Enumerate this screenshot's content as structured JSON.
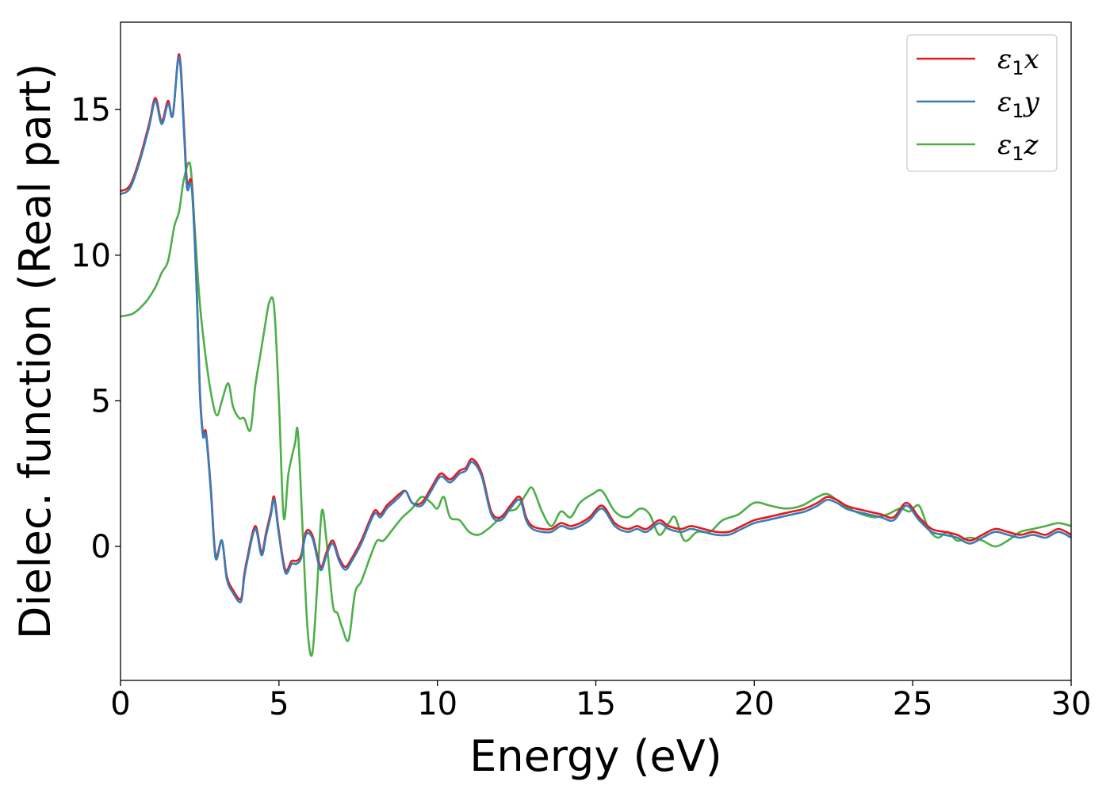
{
  "chart_data": {
    "type": "line",
    "title": "",
    "xlabel": "Energy (eV)",
    "ylabel": "Dielec. function (Real part)",
    "xlim": [
      0,
      30
    ],
    "ylim": [
      -4.6,
      18.0
    ],
    "xticks": [
      0,
      5,
      10,
      15,
      20,
      25,
      30
    ],
    "yticks": [
      0,
      5,
      10,
      15
    ],
    "grid": false,
    "legend": "top-right",
    "series": [
      {
        "name": "ε1x",
        "label_main": "ε",
        "label_sub": "1",
        "label_tail": "x",
        "color": "#e41a1c",
        "x": [
          0,
          0.3,
          0.6,
          0.9,
          1.1,
          1.3,
          1.5,
          1.65,
          1.85,
          2.0,
          2.1,
          2.25,
          2.4,
          2.5,
          2.6,
          2.7,
          2.85,
          3.0,
          3.2,
          3.35,
          3.55,
          3.8,
          3.9,
          4.0,
          4.25,
          4.45,
          4.6,
          4.75,
          4.85,
          5.0,
          5.2,
          5.4,
          5.55,
          5.7,
          5.85,
          6.05,
          6.25,
          6.35,
          6.5,
          6.7,
          6.9,
          7.1,
          7.3,
          7.6,
          8.0,
          8.2,
          8.4,
          8.6,
          8.8,
          9.0,
          9.2,
          9.5,
          9.8,
          10.1,
          10.4,
          10.7,
          10.9,
          11.1,
          11.4,
          11.7,
          12.0,
          12.3,
          12.6,
          12.8,
          13.0,
          13.3,
          13.6,
          13.9,
          14.2,
          14.5,
          14.8,
          15.2,
          15.6,
          16.0,
          16.3,
          16.6,
          17.0,
          17.3,
          17.7,
          18.0,
          18.4,
          18.8,
          19.2,
          19.6,
          20.0,
          20.4,
          20.8,
          21.2,
          21.6,
          22.0,
          22.3,
          22.6,
          22.9,
          23.2,
          23.6,
          24.0,
          24.4,
          24.8,
          25.2,
          25.6,
          26.0,
          26.4,
          26.8,
          27.2,
          27.6,
          28.0,
          28.4,
          28.8,
          29.2,
          29.6,
          30.0
        ],
        "values": [
          12.2,
          12.4,
          13.3,
          14.5,
          15.4,
          14.6,
          15.3,
          14.8,
          16.9,
          14.5,
          12.5,
          12.4,
          9.0,
          5.5,
          3.9,
          3.9,
          2.0,
          -0.3,
          0.2,
          -1.0,
          -1.5,
          -1.8,
          -1.0,
          -0.4,
          0.7,
          -0.2,
          0.5,
          1.2,
          1.7,
          0.5,
          -0.8,
          -0.5,
          -0.5,
          -0.3,
          0.5,
          0.4,
          -0.5,
          -0.7,
          -0.2,
          0.2,
          -0.4,
          -0.7,
          -0.4,
          0.2,
          1.2,
          1.1,
          1.4,
          1.6,
          1.8,
          1.9,
          1.5,
          1.5,
          2.0,
          2.5,
          2.3,
          2.6,
          2.7,
          3.0,
          2.5,
          1.2,
          1.0,
          1.4,
          1.7,
          1.0,
          0.7,
          0.6,
          0.6,
          0.8,
          0.7,
          0.8,
          1.0,
          1.4,
          0.8,
          0.6,
          0.7,
          0.6,
          0.9,
          0.7,
          0.6,
          0.7,
          0.6,
          0.5,
          0.5,
          0.7,
          0.9,
          1.0,
          1.1,
          1.2,
          1.3,
          1.5,
          1.7,
          1.6,
          1.4,
          1.3,
          1.2,
          1.1,
          1.0,
          1.5,
          1.0,
          0.6,
          0.5,
          0.4,
          0.2,
          0.4,
          0.6,
          0.5,
          0.4,
          0.5,
          0.4,
          0.6,
          0.4
        ]
      },
      {
        "name": "ε1y",
        "label_main": "ε",
        "label_sub": "1",
        "label_tail": "y",
        "color": "#377eb8",
        "x": [
          0,
          0.3,
          0.6,
          0.9,
          1.1,
          1.3,
          1.5,
          1.65,
          1.85,
          2.0,
          2.1,
          2.25,
          2.4,
          2.5,
          2.6,
          2.7,
          2.85,
          3.0,
          3.2,
          3.35,
          3.55,
          3.8,
          3.9,
          4.0,
          4.25,
          4.45,
          4.6,
          4.75,
          4.85,
          5.0,
          5.2,
          5.4,
          5.55,
          5.7,
          5.85,
          6.05,
          6.25,
          6.35,
          6.5,
          6.7,
          6.9,
          7.1,
          7.3,
          7.6,
          8.0,
          8.2,
          8.4,
          8.6,
          8.8,
          9.0,
          9.2,
          9.5,
          9.8,
          10.1,
          10.4,
          10.7,
          10.9,
          11.1,
          11.4,
          11.7,
          12.0,
          12.3,
          12.6,
          12.8,
          13.0,
          13.3,
          13.6,
          13.9,
          14.2,
          14.5,
          14.8,
          15.2,
          15.6,
          16.0,
          16.3,
          16.6,
          17.0,
          17.3,
          17.7,
          18.0,
          18.4,
          18.8,
          19.2,
          19.6,
          20.0,
          20.4,
          20.8,
          21.2,
          21.6,
          22.0,
          22.3,
          22.6,
          22.9,
          23.2,
          23.6,
          24.0,
          24.4,
          24.8,
          25.2,
          25.6,
          26.0,
          26.4,
          26.8,
          27.2,
          27.6,
          28.0,
          28.4,
          28.8,
          29.2,
          29.6,
          30.0
        ],
        "values": [
          12.1,
          12.3,
          13.2,
          14.4,
          15.3,
          14.5,
          15.2,
          14.8,
          16.8,
          14.3,
          12.3,
          12.3,
          8.9,
          5.4,
          3.8,
          3.8,
          1.9,
          -0.4,
          0.2,
          -1.1,
          -1.6,
          -1.9,
          -1.1,
          -0.5,
          0.6,
          -0.3,
          0.4,
          1.1,
          1.6,
          0.4,
          -0.9,
          -0.6,
          -0.6,
          -0.4,
          0.4,
          0.3,
          -0.6,
          -0.8,
          -0.3,
          0.1,
          -0.5,
          -0.8,
          -0.5,
          0.1,
          1.1,
          1.0,
          1.3,
          1.5,
          1.7,
          1.9,
          1.5,
          1.4,
          1.9,
          2.4,
          2.2,
          2.5,
          2.6,
          2.9,
          2.4,
          1.1,
          0.9,
          1.3,
          1.6,
          0.9,
          0.6,
          0.5,
          0.5,
          0.7,
          0.6,
          0.7,
          0.9,
          1.3,
          0.7,
          0.5,
          0.6,
          0.5,
          0.8,
          0.6,
          0.5,
          0.6,
          0.5,
          0.4,
          0.4,
          0.6,
          0.8,
          0.9,
          1.0,
          1.1,
          1.2,
          1.4,
          1.6,
          1.5,
          1.3,
          1.2,
          1.1,
          1.0,
          0.9,
          1.4,
          0.9,
          0.5,
          0.4,
          0.3,
          0.1,
          0.3,
          0.5,
          0.4,
          0.3,
          0.4,
          0.3,
          0.5,
          0.3
        ]
      },
      {
        "name": "ε1z",
        "label_main": "ε",
        "label_sub": "1",
        "label_tail": "z",
        "color": "#4daf4a",
        "x": [
          0,
          0.4,
          0.8,
          1.1,
          1.3,
          1.5,
          1.7,
          1.85,
          2.0,
          2.2,
          2.35,
          2.5,
          2.7,
          2.9,
          3.05,
          3.2,
          3.4,
          3.55,
          3.75,
          3.9,
          4.1,
          4.25,
          4.4,
          4.55,
          4.7,
          4.85,
          5.0,
          5.15,
          5.3,
          5.5,
          5.6,
          5.75,
          5.9,
          6.05,
          6.2,
          6.35,
          6.5,
          6.7,
          6.85,
          7.0,
          7.2,
          7.4,
          7.6,
          7.9,
          8.1,
          8.3,
          8.6,
          8.9,
          9.2,
          9.5,
          9.8,
          10.0,
          10.2,
          10.4,
          10.7,
          11.0,
          11.3,
          11.6,
          11.9,
          12.2,
          12.5,
          12.8,
          13.0,
          13.3,
          13.6,
          13.9,
          14.2,
          14.5,
          14.9,
          15.2,
          15.6,
          16.0,
          16.4,
          16.7,
          17.0,
          17.3,
          17.5,
          17.8,
          18.2,
          18.6,
          19.0,
          19.5,
          20.0,
          20.5,
          21.0,
          21.5,
          22.0,
          22.3,
          22.6,
          23.0,
          23.4,
          23.8,
          24.2,
          24.6,
          24.9,
          25.2,
          25.5,
          25.8,
          26.1,
          26.4,
          26.8,
          27.2,
          27.6,
          28.0,
          28.4,
          28.8,
          29.2,
          29.6,
          30.0
        ],
        "values": [
          7.9,
          8.0,
          8.4,
          8.9,
          9.4,
          9.8,
          11.0,
          11.5,
          12.6,
          13.1,
          10.8,
          8.4,
          6.4,
          5.0,
          4.5,
          5.0,
          5.6,
          4.8,
          4.4,
          4.4,
          4.0,
          5.5,
          6.5,
          7.5,
          8.4,
          8.2,
          5.0,
          1.0,
          2.5,
          3.5,
          3.9,
          0.5,
          -2.8,
          -3.7,
          -1.5,
          1.2,
          0.2,
          -2.0,
          -2.3,
          -2.8,
          -3.2,
          -1.6,
          -1.2,
          -0.3,
          0.2,
          0.2,
          0.6,
          1.0,
          1.3,
          1.7,
          1.5,
          1.3,
          1.7,
          1.0,
          0.9,
          0.5,
          0.4,
          0.6,
          0.9,
          1.2,
          1.3,
          1.8,
          2.0,
          1.2,
          0.7,
          1.2,
          1.0,
          1.5,
          1.8,
          1.9,
          1.2,
          1.0,
          1.3,
          1.1,
          0.4,
          0.8,
          1.0,
          0.2,
          0.5,
          0.5,
          0.9,
          1.1,
          1.5,
          1.4,
          1.3,
          1.4,
          1.7,
          1.8,
          1.6,
          1.3,
          1.1,
          1.0,
          1.1,
          1.3,
          1.2,
          1.4,
          0.6,
          0.3,
          0.5,
          0.2,
          0.3,
          0.2,
          0.0,
          0.2,
          0.5,
          0.6,
          0.7,
          0.8,
          0.7
        ]
      }
    ]
  }
}
